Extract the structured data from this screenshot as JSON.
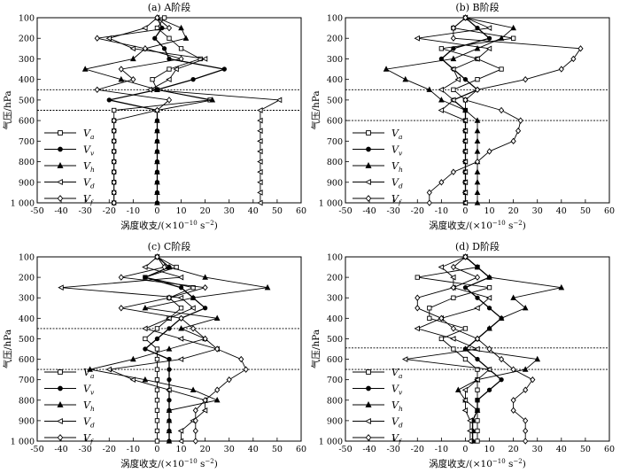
{
  "figure": {
    "y_unit_label": "气压/hPa",
    "x_unit_label": "涡度收支/(×10",
    "x_unit_exp": "−10",
    "x_unit_tail": " s",
    "x_unit_exp2": "−2",
    "x_unit_close": ")"
  },
  "legend": [
    {
      "symbol": "square",
      "label": "V",
      "sub": "a"
    },
    {
      "symbol": "circle",
      "label": "V",
      "sub": "v"
    },
    {
      "symbol": "triangle",
      "label": "V",
      "sub": "h"
    },
    {
      "symbol": "left-triangle",
      "label": "V",
      "sub": "d"
    },
    {
      "symbol": "diamond",
      "label": "V",
      "sub": "f"
    }
  ],
  "chart_data": [
    {
      "type": "line",
      "title": "(a) A阶段",
      "xlabel": "涡度收支/(×10−10 s−2)",
      "ylabel": "气压/hPa",
      "xlim": [
        -50,
        60
      ],
      "ylim": [
        1000,
        100
      ],
      "x_ticks": [
        -50,
        -40,
        -30,
        -20,
        -10,
        0,
        10,
        20,
        30,
        40,
        50,
        60
      ],
      "y_ticks": [
        100,
        200,
        300,
        400,
        500,
        600,
        700,
        800,
        900,
        1000
      ],
      "y_tick_labels": [
        "100",
        "200",
        "300",
        "400",
        "500",
        "600",
        "700",
        "800",
        "900",
        "1 000"
      ],
      "reference_lines": [
        450,
        550
      ],
      "grid": false,
      "legend_position": "left",
      "y": [
        100,
        150,
        200,
        250,
        300,
        350,
        400,
        450,
        500,
        550,
        600,
        650,
        700,
        750,
        800,
        850,
        900,
        950,
        1000
      ],
      "series": [
        {
          "symbol": "square",
          "x": [
            3,
            0,
            5,
            10,
            18,
            5,
            -2,
            0,
            22,
            -18,
            -18,
            -18,
            -18,
            -18,
            -18,
            -18,
            -18,
            -18,
            -18
          ]
        },
        {
          "symbol": "circle",
          "x": [
            0,
            2,
            -1,
            3,
            5,
            28,
            15,
            0,
            -20,
            0,
            0,
            0,
            0,
            0,
            0,
            0,
            0,
            0,
            0
          ]
        },
        {
          "symbol": "triangle",
          "x": [
            0,
            10,
            12,
            -5,
            -10,
            -30,
            -15,
            0,
            23,
            0,
            0,
            0,
            0,
            0,
            0,
            0,
            0,
            0,
            0
          ]
        },
        {
          "symbol": "left-triangle",
          "x": [
            0,
            -5,
            -20,
            -10,
            20,
            8,
            5,
            -3,
            51,
            43,
            43,
            43,
            43,
            43,
            43,
            43,
            43,
            43,
            43
          ]
        },
        {
          "symbol": "diamond",
          "x": [
            0,
            5,
            -25,
            -5,
            10,
            -15,
            -10,
            -25,
            5,
            0,
            -18,
            -18,
            -18,
            -18,
            -18,
            -18,
            -18,
            -18,
            -18
          ]
        }
      ]
    },
    {
      "type": "line",
      "title": "(b) B阶段",
      "xlabel": "涡度收支/(×10−10 s−2)",
      "ylabel": "气压/hPa",
      "xlim": [
        -50,
        60
      ],
      "ylim": [
        1000,
        100
      ],
      "x_ticks": [
        -50,
        -40,
        -30,
        -20,
        -10,
        0,
        10,
        20,
        30,
        40,
        50,
        60
      ],
      "y_ticks": [
        100,
        200,
        300,
        400,
        500,
        600,
        700,
        800,
        900,
        1000
      ],
      "y_tick_labels": [
        "100",
        "200",
        "300",
        "400",
        "500",
        "600",
        "700",
        "800",
        "900",
        "1 000"
      ],
      "reference_lines": [
        450,
        600
      ],
      "grid": false,
      "legend_position": "left",
      "y": [
        100,
        150,
        200,
        250,
        300,
        350,
        400,
        450,
        500,
        550,
        600,
        650,
        700,
        750,
        800,
        850,
        900,
        950,
        1000
      ],
      "series": [
        {
          "symbol": "square",
          "x": [
            0,
            -5,
            20,
            -10,
            5,
            15,
            5,
            -5,
            0,
            0,
            0,
            0,
            0,
            0,
            0,
            0,
            0,
            0,
            0
          ]
        },
        {
          "symbol": "circle",
          "x": [
            0,
            5,
            10,
            -5,
            -10,
            -5,
            0,
            5,
            -5,
            0,
            0,
            0,
            0,
            0,
            0,
            0,
            0,
            0,
            0
          ]
        },
        {
          "symbol": "triangle",
          "x": [
            0,
            20,
            15,
            5,
            -5,
            -33,
            -25,
            -15,
            -10,
            0,
            5,
            5,
            5,
            5,
            5,
            5,
            5,
            5,
            5
          ]
        },
        {
          "symbol": "left-triangle",
          "x": [
            0,
            10,
            -20,
            10,
            5,
            -5,
            -3,
            -10,
            -5,
            -10,
            0,
            0,
            0,
            0,
            0,
            0,
            0,
            0,
            0
          ]
        },
        {
          "symbol": "diamond",
          "x": [
            0,
            -5,
            -5,
            48,
            45,
            40,
            25,
            5,
            0,
            15,
            23,
            22,
            20,
            10,
            5,
            -5,
            -10,
            -15,
            -15
          ]
        }
      ]
    },
    {
      "type": "line",
      "title": "(c) C阶段",
      "xlabel": "涡度收支/(×10−10 s−2)",
      "ylabel": "气压/hPa",
      "xlim": [
        -50,
        60
      ],
      "ylim": [
        1000,
        100
      ],
      "x_ticks": [
        -50,
        -40,
        -30,
        -20,
        -10,
        0,
        10,
        20,
        30,
        40,
        50,
        60
      ],
      "y_ticks": [
        100,
        200,
        300,
        400,
        500,
        600,
        700,
        800,
        900,
        1000
      ],
      "y_tick_labels": [
        "100",
        "200",
        "300",
        "400",
        "500",
        "600",
        "700",
        "800",
        "900",
        "1 000"
      ],
      "reference_lines": [
        450,
        650
      ],
      "grid": false,
      "legend_position": "left",
      "y": [
        100,
        150,
        200,
        250,
        300,
        350,
        400,
        450,
        500,
        550,
        600,
        650,
        700,
        750,
        800,
        850,
        900,
        950,
        1000
      ],
      "series": [
        {
          "symbol": "square",
          "x": [
            0,
            8,
            -5,
            15,
            5,
            10,
            5,
            0,
            -5,
            0,
            0,
            0,
            0,
            0,
            0,
            0,
            0,
            0,
            0
          ]
        },
        {
          "symbol": "circle",
          "x": [
            0,
            5,
            -5,
            10,
            15,
            20,
            10,
            5,
            0,
            -5,
            5,
            5,
            5,
            5,
            5,
            5,
            5,
            5,
            5
          ]
        },
        {
          "symbol": "triangle",
          "x": [
            0,
            5,
            20,
            46,
            15,
            -5,
            25,
            10,
            20,
            5,
            -10,
            -28,
            -5,
            15,
            25,
            5,
            5,
            5,
            5
          ]
        },
        {
          "symbol": "left-triangle",
          "x": [
            0,
            -5,
            10,
            -40,
            10,
            15,
            5,
            -5,
            10,
            25,
            10,
            -20,
            -10,
            5,
            20,
            20,
            15,
            10,
            10
          ]
        },
        {
          "symbol": "diamond",
          "x": [
            0,
            3,
            -15,
            20,
            5,
            -15,
            10,
            15,
            20,
            25,
            35,
            37,
            30,
            25,
            20,
            16,
            16,
            16,
            16
          ]
        }
      ]
    },
    {
      "type": "line",
      "title": "(d) D阶段",
      "xlabel": "涡度收支/(×10−10 s−2)",
      "ylabel": "气压/hPa",
      "xlim": [
        -50,
        60
      ],
      "ylim": [
        1000,
        100
      ],
      "x_ticks": [
        -50,
        -40,
        -30,
        -20,
        -10,
        0,
        10,
        20,
        30,
        40,
        50,
        60
      ],
      "y_ticks": [
        100,
        200,
        300,
        400,
        500,
        600,
        700,
        800,
        900,
        1000
      ],
      "y_tick_labels": [
        "100",
        "200",
        "300",
        "400",
        "500",
        "600",
        "700",
        "800",
        "900",
        "1 000"
      ],
      "reference_lines": [
        545,
        650
      ],
      "grid": false,
      "legend_position": "left",
      "y": [
        100,
        150,
        200,
        250,
        300,
        350,
        400,
        450,
        500,
        550,
        600,
        650,
        700,
        750,
        800,
        850,
        900,
        950,
        1000
      ],
      "series": [
        {
          "symbol": "square",
          "x": [
            0,
            5,
            -20,
            10,
            -5,
            -15,
            -15,
            0,
            -10,
            -5,
            0,
            5,
            5,
            5,
            5,
            5,
            5,
            5,
            5
          ]
        },
        {
          "symbol": "circle",
          "x": [
            0,
            5,
            10,
            0,
            5,
            10,
            15,
            10,
            5,
            0,
            5,
            10,
            15,
            10,
            5,
            5,
            3,
            3,
            3
          ]
        },
        {
          "symbol": "triangle",
          "x": [
            0,
            5,
            10,
            40,
            20,
            25,
            15,
            10,
            5,
            0,
            30,
            25,
            5,
            -3,
            0,
            5,
            3,
            3,
            3
          ]
        },
        {
          "symbol": "left-triangle",
          "x": [
            0,
            -10,
            -5,
            -5,
            10,
            5,
            -10,
            -20,
            -5,
            5,
            -25,
            10,
            5,
            0,
            0,
            0,
            2,
            2,
            2
          ]
        },
        {
          "symbol": "diamond",
          "x": [
            0,
            -5,
            5,
            -5,
            -20,
            -20,
            -10,
            -5,
            5,
            10,
            15,
            20,
            28,
            25,
            20,
            20,
            25,
            25,
            25
          ]
        }
      ]
    }
  ]
}
